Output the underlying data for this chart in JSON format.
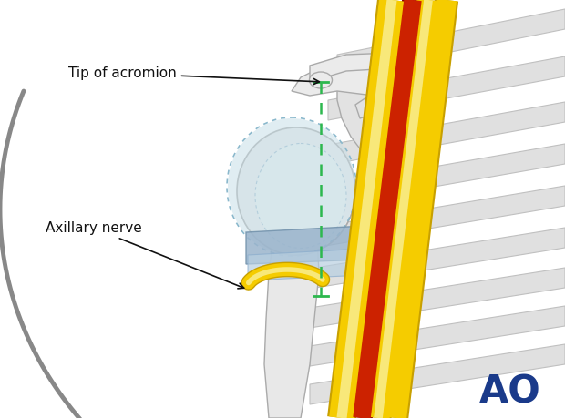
{
  "background_color": "#ffffff",
  "figure_width": 6.2,
  "figure_height": 4.59,
  "dpi": 100,
  "ao_logo_text": "AO",
  "ao_logo_color": "#1a3a8a",
  "ao_logo_fontsize": 30,
  "label_tip_acromion": "Tip of acromion",
  "label_axillary": "Axillary nerve",
  "label_fontsize": 11,
  "label_color": "#111111",
  "green_line_color": "#2db84e",
  "arm_outline_color": "#707070",
  "bone_color": "#ebebeb",
  "bone_edge_color": "#aaaaaa",
  "cartilage_blue": "#c8dfe8",
  "cartilage_light": "#ddeef4",
  "humeral_head_inner": "#dce8ec",
  "labrum_blue": "#9ab4cc",
  "labrum_dark": "#7090aa",
  "nerve_yellow": "#f5cc00",
  "nerve_yellow_light": "#f8e87a",
  "nerve_red": "#cc2200",
  "rib_color": "#e0e0e0",
  "rib_edge_color": "#c0c0c0",
  "gray_arc_color": "#888888",
  "scapula_color": "#e2e2e2",
  "humerus_shaft_color": "#e8e8e8"
}
